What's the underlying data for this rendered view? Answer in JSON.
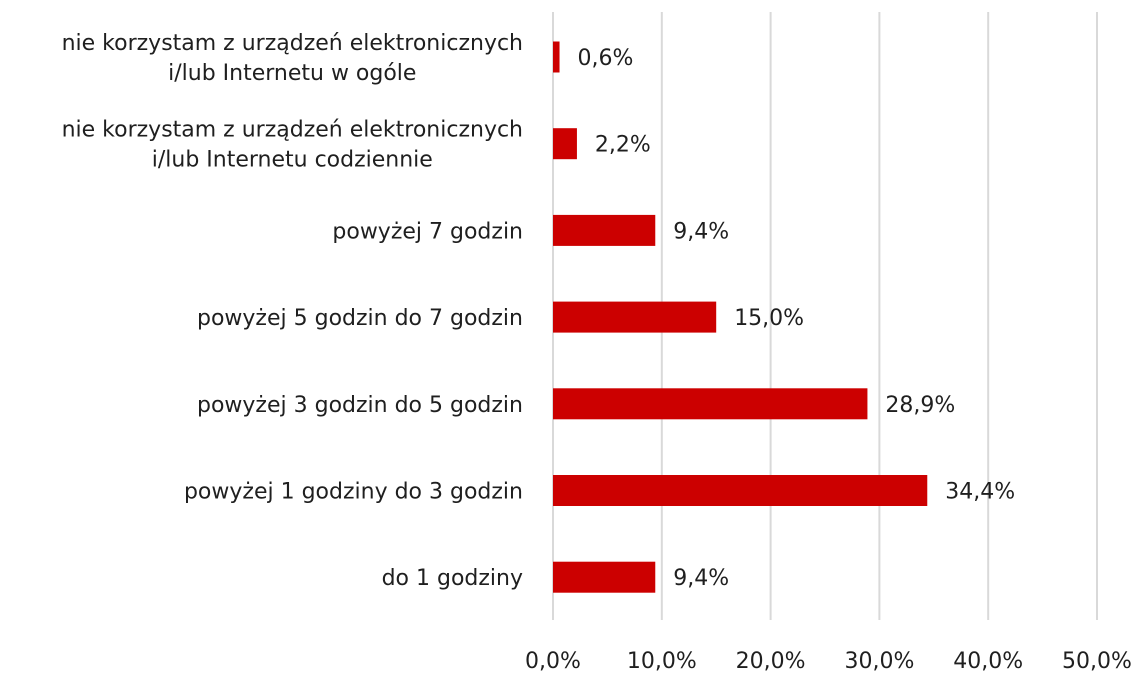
{
  "chart_data": {
    "type": "bar",
    "orientation": "horizontal",
    "categories": [
      [
        "nie korzystam z urządzeń elektronicznych",
        "i/lub Internetu w ogóle"
      ],
      [
        "nie korzystam z urządzeń elektronicznych",
        "i/lub Internetu codziennie"
      ],
      [
        "powyżej 7 godzin"
      ],
      [
        "powyżej 5 godzin do 7 godzin"
      ],
      [
        "powyżej 3 godzin do 5 godzin"
      ],
      [
        "powyżej 1 godziny do 3 godzin"
      ],
      [
        "do 1 godziny"
      ]
    ],
    "values": [
      0.6,
      2.2,
      9.4,
      15.0,
      28.9,
      34.4,
      9.4
    ],
    "data_labels": [
      "0,6%",
      "2,2%",
      "9,4%",
      "15,0%",
      "28,9%",
      "34,4%",
      "9,4%"
    ],
    "xlim": [
      0,
      50
    ],
    "x_ticks": [
      0,
      10,
      20,
      30,
      40,
      50
    ],
    "x_tick_labels": [
      "0,0%",
      "10,0%",
      "20,0%",
      "30,0%",
      "40,0%",
      "50,0%"
    ],
    "grid": true,
    "legend": "none",
    "bar_color": "#cc0000",
    "grid_color": "#d9d9d9",
    "title": "",
    "xlabel": "",
    "ylabel": ""
  }
}
